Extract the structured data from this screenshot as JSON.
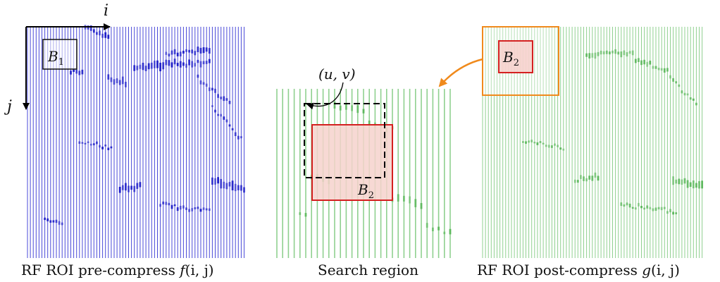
{
  "colors": {
    "pre_lines": "#4a4ad8",
    "pre_speckle": "#1d1dc8",
    "post_lines": "#8fd08f",
    "post_speckle": "#5cb85c",
    "block_fill": "#f6d7d2",
    "block_stroke": "#d42020",
    "search_box_stroke": "#f08a1c",
    "arrow_orange": "#f08a1c",
    "axis": "#000000"
  },
  "left_panel": {
    "axis_i": "i",
    "axis_j": "j",
    "block_label_main": "B",
    "block_label_sub": "1",
    "caption_text": "RF ROI pre-compress ",
    "caption_func": "f",
    "caption_args": "(i, j)"
  },
  "center_panel": {
    "displacement_label": "(u, v)",
    "block_label_main": "B",
    "block_label_sub": "2",
    "caption": "Search region"
  },
  "right_panel": {
    "block_label_main": "B",
    "block_label_sub": "2",
    "caption_text": "RF ROI post-compress ",
    "caption_func": "g",
    "caption_args": "(i, j)"
  }
}
